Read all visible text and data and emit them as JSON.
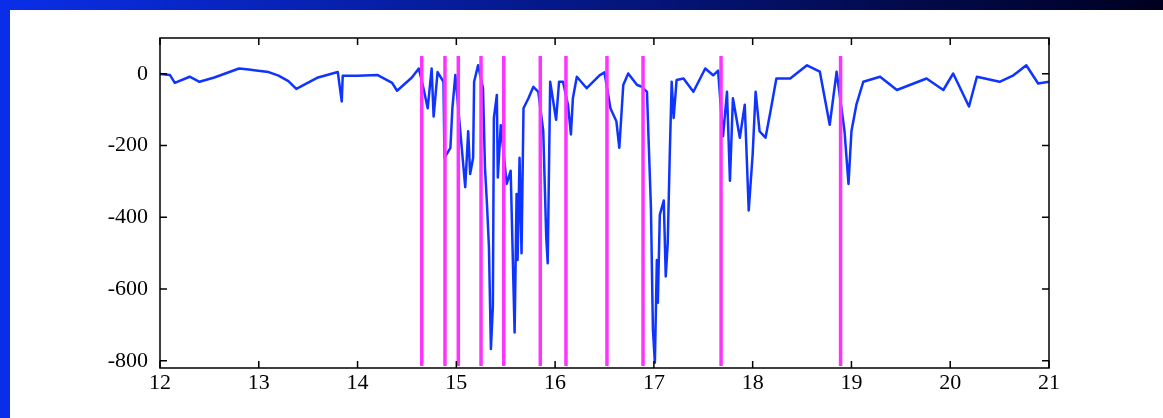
{
  "chart_data": {
    "type": "line",
    "marker": "none",
    "xlim": [
      12,
      21
    ],
    "xticks": [
      12,
      13,
      14,
      15,
      16,
      17,
      18,
      19,
      20,
      21
    ],
    "ylim": [
      -820,
      100
    ],
    "yticks": [
      0,
      -200,
      -400,
      -600,
      -800
    ],
    "x": [
      12.0,
      12.1,
      12.15,
      12.3,
      12.4,
      12.55,
      12.8,
      12.9,
      13.1,
      13.2,
      13.3,
      13.38,
      13.6,
      13.8,
      13.84,
      13.85,
      14.0,
      14.2,
      14.35,
      14.4,
      14.55,
      14.62,
      14.66,
      14.71,
      14.75,
      14.77,
      14.81,
      14.87,
      14.88,
      14.94,
      14.96,
      14.99,
      15.04,
      15.09,
      15.12,
      15.14,
      15.17,
      15.18,
      15.22,
      15.27,
      15.29,
      15.31,
      15.33,
      15.35,
      15.37,
      15.38,
      15.41,
      15.42,
      15.45,
      15.51,
      15.55,
      15.59,
      15.61,
      15.62,
      15.64,
      15.66,
      15.68,
      15.73,
      15.78,
      15.83,
      15.88,
      15.91,
      15.925,
      15.95,
      16.01,
      16.04,
      16.08,
      16.13,
      16.16,
      16.18,
      16.22,
      16.32,
      16.45,
      16.5,
      16.56,
      16.62,
      16.65,
      16.69,
      16.74,
      16.83,
      16.88,
      16.93,
      16.94,
      16.97,
      16.99,
      17.01,
      17.03,
      17.04,
      17.06,
      17.1,
      17.12,
      17.14,
      17.16,
      17.18,
      17.2,
      17.23,
      17.3,
      17.4,
      17.52,
      17.6,
      17.65,
      17.7,
      17.74,
      17.77,
      17.8,
      17.87,
      17.92,
      17.96,
      18.0,
      18.03,
      18.07,
      18.13,
      18.18,
      18.24,
      18.38,
      18.55,
      18.68,
      18.78,
      18.85,
      18.93,
      18.97,
      19.0,
      19.05,
      19.12,
      19.29,
      19.46,
      19.76,
      19.93,
      20.03,
      20.19,
      20.27,
      20.5,
      20.64,
      20.77,
      20.89,
      21.0
    ],
    "series": [
      {
        "color": "#1034ff",
        "values": [
          0,
          -3,
          -25,
          -8,
          -22,
          -10,
          15,
          12,
          5,
          -5,
          -20,
          -42,
          -10,
          5,
          -77,
          -5,
          -5,
          -3,
          -25,
          -47,
          -10,
          15,
          -31,
          -96,
          15,
          -119,
          5,
          -22,
          -234,
          -206,
          -96,
          -3,
          -160,
          -316,
          -160,
          -279,
          -234,
          -22,
          24,
          -40,
          -262,
          -362,
          -482,
          -767,
          -647,
          -123,
          -59,
          -289,
          -143,
          -307,
          -270,
          -721,
          -335,
          -519,
          -234,
          -500,
          -96,
          -68,
          -36,
          -50,
          -160,
          -454,
          -528,
          -22,
          -128,
          -22,
          -22,
          -86,
          -169,
          -68,
          -8,
          -40,
          -4,
          4,
          -96,
          -132,
          -206,
          -31,
          1,
          -31,
          -36,
          -50,
          -132,
          -372,
          -712,
          -805,
          -519,
          -638,
          -393,
          -353,
          -565,
          -472,
          -234,
          -22,
          -123,
          -17,
          -13,
          -50,
          15,
          -4,
          9,
          -174,
          -50,
          -298,
          -68,
          -178,
          -86,
          -381,
          -224,
          -50,
          -160,
          -178,
          -105,
          -13,
          -13,
          24,
          6,
          -142,
          6,
          -160,
          -307,
          -160,
          -86,
          -22,
          -8,
          -45,
          -13,
          -45,
          1,
          -91,
          -8,
          -22,
          -4,
          24,
          -27,
          -22
        ]
      }
    ],
    "ref_lines": [
      {
        "axis": "x",
        "value": 14.65,
        "color": "#ff33ff"
      },
      {
        "axis": "x",
        "value": 14.885,
        "color": "#ff33ff"
      },
      {
        "axis": "x",
        "value": 15.02,
        "color": "#ff33ff"
      },
      {
        "axis": "x",
        "value": 15.25,
        "color": "#ff33ff"
      },
      {
        "axis": "x",
        "value": 15.48,
        "color": "#ff33ff"
      },
      {
        "axis": "x",
        "value": 15.85,
        "color": "#ff33ff"
      },
      {
        "axis": "x",
        "value": 16.11,
        "color": "#ff33ff"
      },
      {
        "axis": "x",
        "value": 16.525,
        "color": "#ff33ff"
      },
      {
        "axis": "x",
        "value": 16.89,
        "color": "#ff33ff"
      },
      {
        "axis": "x",
        "value": 17.68,
        "color": "#ff33ff"
      },
      {
        "axis": "x",
        "value": 18.89,
        "color": "#ff33ff"
      }
    ]
  }
}
